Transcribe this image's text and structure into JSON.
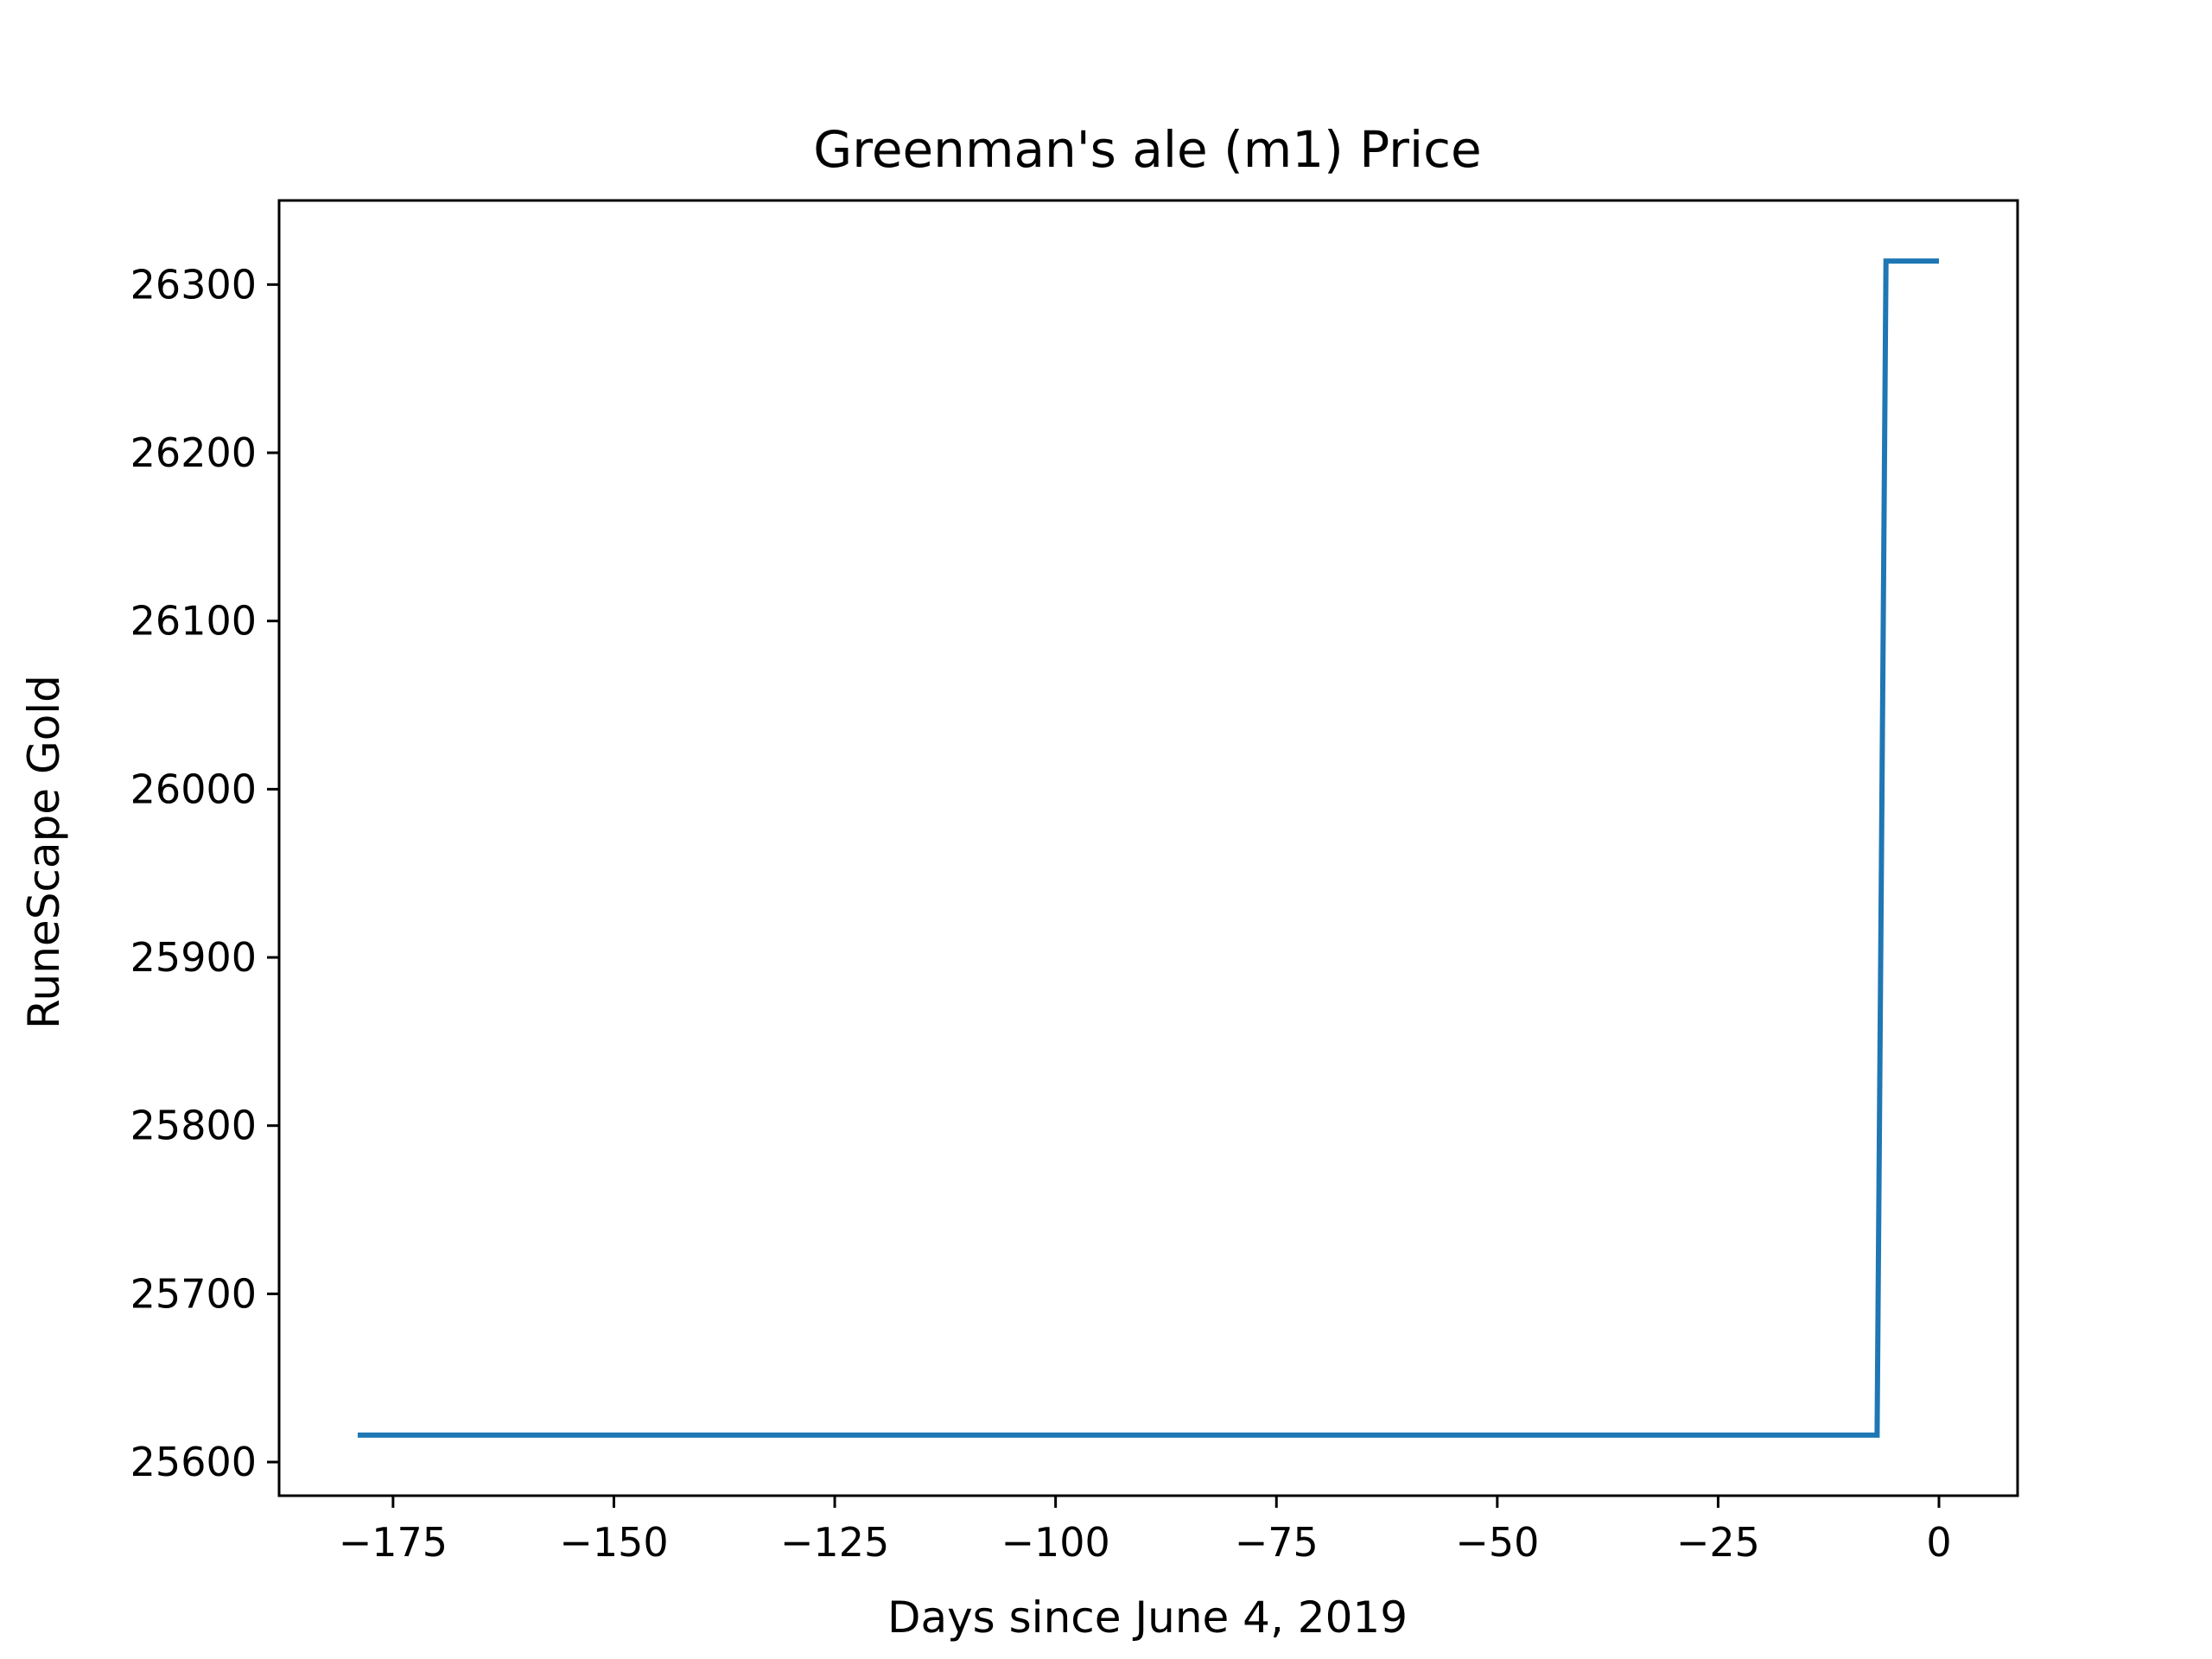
{
  "chart_data": {
    "type": "line",
    "title": "Greenman's ale (m1) Price",
    "xlabel": "Days since June 4, 2019",
    "ylabel": "RuneScape Gold",
    "xlim": [
      -187.9,
      8.9
    ],
    "ylim": [
      25580,
      26350
    ],
    "x_ticks": [
      -175,
      -150,
      -125,
      -100,
      -75,
      -50,
      -25,
      0
    ],
    "x_tick_labels": [
      "−175",
      "−150",
      "−125",
      "−100",
      "−75",
      "−50",
      "−25",
      "0"
    ],
    "y_ticks": [
      25600,
      25700,
      25800,
      25900,
      26000,
      26100,
      26200,
      26300
    ],
    "y_tick_labels": [
      "25600",
      "25700",
      "25800",
      "25900",
      "26000",
      "26100",
      "26200",
      "26300"
    ],
    "grid": false,
    "series": [
      {
        "color": "#1f77b4",
        "x": [
          -179,
          -7,
          -6,
          0
        ],
        "y": [
          25616,
          25616,
          26314,
          26314
        ]
      }
    ]
  }
}
